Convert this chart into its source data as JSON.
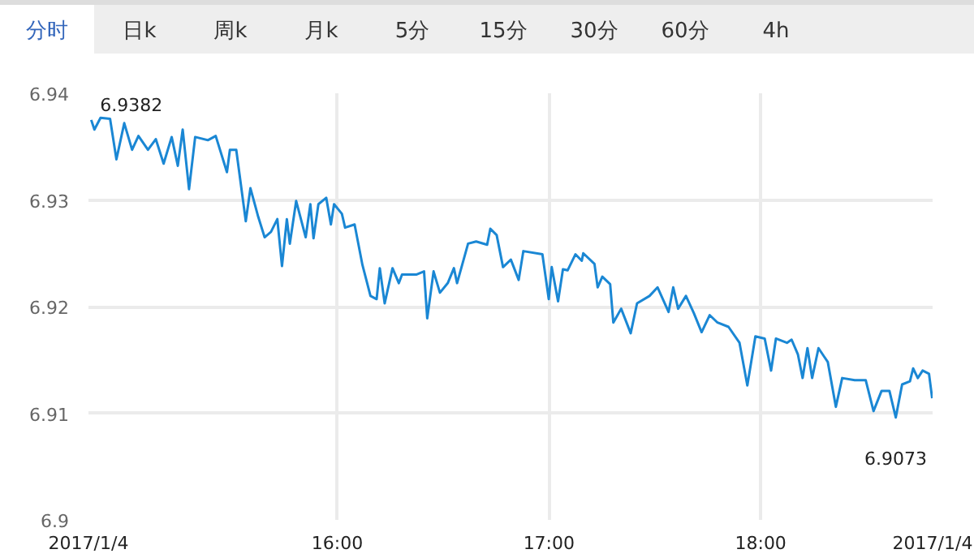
{
  "chart_data": {
    "type": "line",
    "annotations": [
      "分时",
      "日k",
      "周k",
      "月k",
      "5分",
      "15分",
      "30分",
      "60分",
      "4h",
      {
        "text": "6.9382",
        "x": 14.88,
        "y": 6.9382
      },
      {
        "text": "6.9073",
        "x": 18.638,
        "y": 6.9096
      }
    ],
    "x": [
      14.838,
      14.853,
      14.882,
      14.927,
      14.957,
      14.994,
      15.031,
      15.061,
      15.106,
      15.143,
      15.18,
      15.218,
      15.247,
      15.27,
      15.3,
      15.329,
      15.389,
      15.426,
      15.479,
      15.493,
      15.523,
      15.568,
      15.59,
      15.627,
      15.657,
      15.687,
      15.717,
      15.739,
      15.762,
      15.776,
      15.806,
      15.851,
      15.873,
      15.888,
      15.911,
      15.948,
      15.97,
      15.985,
      16.022,
      16.037,
      16.082,
      16.119,
      16.157,
      16.186,
      16.201,
      16.224,
      16.261,
      16.291,
      16.306,
      16.373,
      16.41,
      16.425,
      16.455,
      16.485,
      16.522,
      16.551,
      16.566,
      16.618,
      16.656,
      16.708,
      16.723,
      16.753,
      16.783,
      16.82,
      16.857,
      16.879,
      16.969,
      16.999,
      17.013,
      17.043,
      17.066,
      17.088,
      17.125,
      17.155,
      17.162,
      17.215,
      17.23,
      17.252,
      17.289,
      17.304,
      17.341,
      17.386,
      17.416,
      17.475,
      17.513,
      17.565,
      17.587,
      17.61,
      17.647,
      17.684,
      17.721,
      17.759,
      17.796,
      17.848,
      17.9,
      17.937,
      17.975,
      18.019,
      18.049,
      18.072,
      18.124,
      18.146,
      18.176,
      18.198,
      18.221,
      18.243,
      18.273,
      18.317,
      18.355,
      18.385,
      18.444,
      18.496,
      18.533,
      18.571,
      18.608,
      18.638,
      18.668,
      18.705,
      18.72,
      18.742,
      18.765,
      18.795,
      18.81
    ],
    "series": [
      {
        "color": "#1a87d4",
        "values": [
          6.9375,
          6.9366,
          6.9377,
          6.9376,
          6.9338,
          6.9372,
          6.9347,
          6.936,
          6.9347,
          6.9357,
          6.9334,
          6.9359,
          6.9332,
          6.9366,
          6.931,
          6.9359,
          6.9356,
          6.936,
          6.9326,
          6.9347,
          6.9347,
          6.928,
          6.9311,
          6.9284,
          6.9265,
          6.927,
          6.9282,
          6.9238,
          6.9282,
          6.9259,
          6.9299,
          6.9265,
          6.9296,
          6.9264,
          6.9296,
          6.9302,
          6.9277,
          6.9296,
          6.9287,
          6.9274,
          6.9277,
          6.9239,
          6.921,
          6.9207,
          6.9236,
          6.9203,
          6.9236,
          6.9222,
          6.923,
          6.923,
          6.9233,
          6.9189,
          6.9233,
          6.9213,
          6.9222,
          6.9236,
          6.9222,
          6.9259,
          6.9261,
          6.9258,
          6.9273,
          6.9267,
          6.9237,
          6.9244,
          6.9225,
          6.9252,
          6.9249,
          6.9207,
          6.9237,
          6.9205,
          6.9235,
          6.9234,
          6.9249,
          6.9243,
          6.925,
          6.924,
          6.9218,
          6.9228,
          6.9221,
          6.9185,
          6.9198,
          6.9175,
          6.9203,
          6.921,
          6.9218,
          6.9195,
          6.9218,
          6.9198,
          6.921,
          6.9194,
          6.9176,
          6.9192,
          6.9185,
          6.9181,
          6.9166,
          6.9126,
          6.9172,
          6.917,
          6.914,
          6.917,
          6.9166,
          6.9169,
          6.9155,
          6.9133,
          6.9161,
          6.9133,
          6.9161,
          6.9148,
          6.9106,
          6.9133,
          6.9131,
          6.9131,
          6.9102,
          6.9121,
          6.9121,
          6.9096,
          6.9127,
          6.913,
          6.9142,
          6.9133,
          6.914,
          6.9137,
          6.9114
        ]
      }
    ],
    "xlim": [
      14.825,
      18.812
    ],
    "xticks": [
      {
        "value": 14.825,
        "label": "2017/1/4"
      },
      {
        "value": 16,
        "label": "16:00"
      },
      {
        "value": 17,
        "label": "17:00"
      },
      {
        "value": 18,
        "label": "18:00"
      },
      {
        "value": 18.812,
        "label": "2017/1/4"
      }
    ],
    "ylim": [
      6.9,
      6.94
    ],
    "yticks": [
      6.9,
      6.91,
      6.92,
      6.93,
      6.94
    ],
    "grid": true,
    "line_style": "solid"
  }
}
